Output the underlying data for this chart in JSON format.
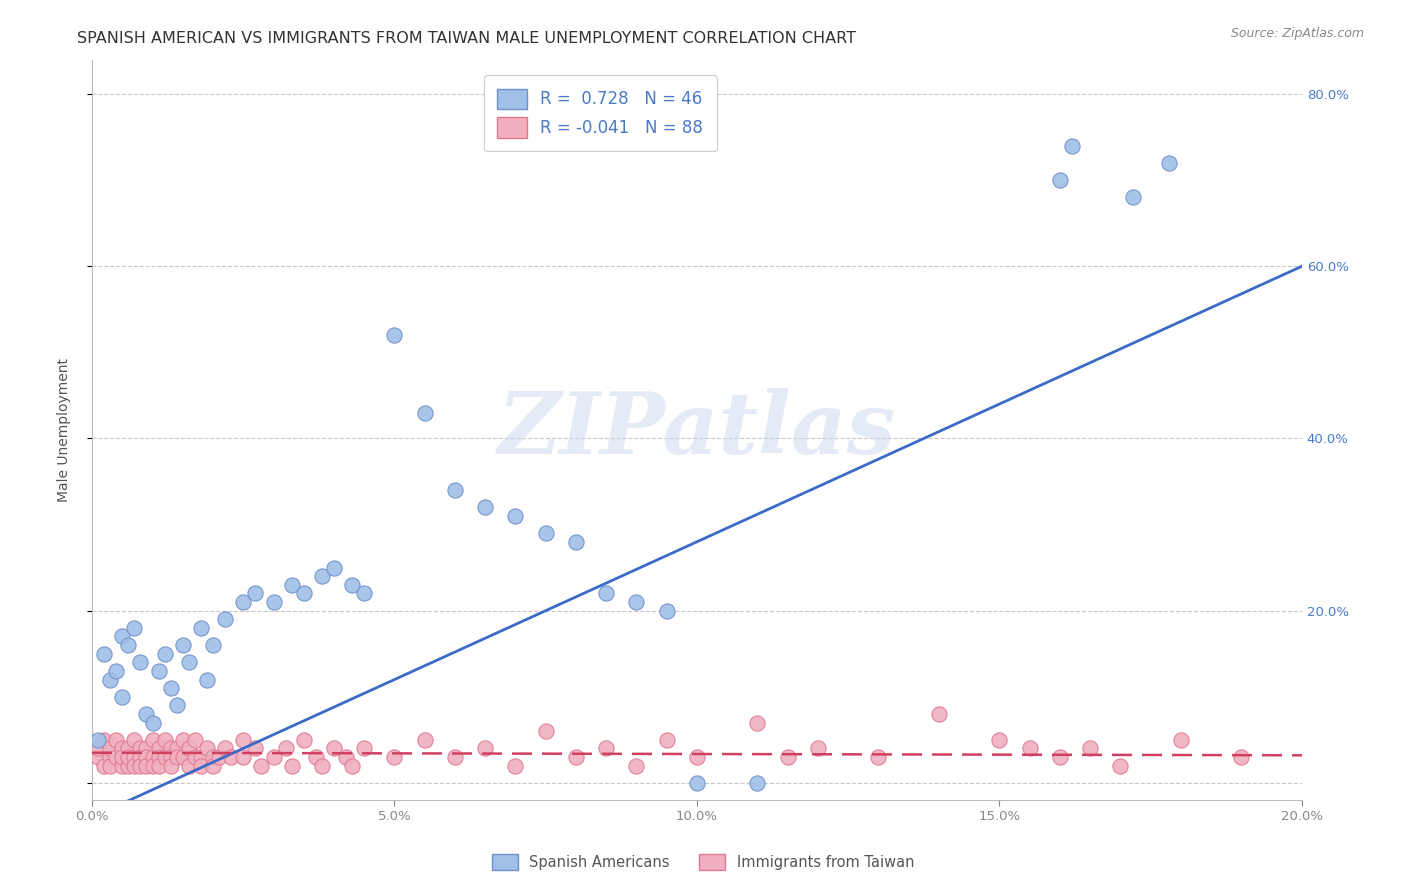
{
  "title": "SPANISH AMERICAN VS IMMIGRANTS FROM TAIWAN MALE UNEMPLOYMENT CORRELATION CHART",
  "source": "Source: ZipAtlas.com",
  "ylabel": "Male Unemployment",
  "xlim": [
    0.0,
    0.2
  ],
  "ylim": [
    -0.02,
    0.84
  ],
  "xticks": [
    0.0,
    0.05,
    0.1,
    0.15,
    0.2
  ],
  "yticks_left": [
    0.0,
    0.2,
    0.4,
    0.6,
    0.8
  ],
  "yticks_right": [
    0.2,
    0.4,
    0.6,
    0.8
  ],
  "blue_scatter_x": [
    0.001,
    0.002,
    0.003,
    0.004,
    0.005,
    0.005,
    0.006,
    0.007,
    0.008,
    0.009,
    0.01,
    0.011,
    0.012,
    0.013,
    0.014,
    0.015,
    0.016,
    0.018,
    0.019,
    0.02,
    0.022,
    0.025,
    0.027,
    0.03,
    0.033,
    0.035,
    0.038,
    0.04,
    0.043,
    0.045,
    0.05,
    0.055,
    0.06,
    0.065,
    0.07,
    0.075,
    0.08,
    0.085,
    0.09,
    0.095,
    0.1,
    0.11,
    0.16,
    0.162,
    0.172,
    0.178
  ],
  "blue_scatter_y": [
    0.05,
    0.15,
    0.12,
    0.13,
    0.1,
    0.17,
    0.16,
    0.18,
    0.14,
    0.08,
    0.07,
    0.13,
    0.15,
    0.11,
    0.09,
    0.16,
    0.14,
    0.18,
    0.12,
    0.16,
    0.19,
    0.21,
    0.22,
    0.21,
    0.23,
    0.22,
    0.24,
    0.25,
    0.23,
    0.22,
    0.52,
    0.43,
    0.34,
    0.32,
    0.31,
    0.29,
    0.28,
    0.22,
    0.21,
    0.2,
    0.0,
    0.0,
    0.7,
    0.74,
    0.68,
    0.72
  ],
  "pink_scatter_x": [
    0.001,
    0.001,
    0.002,
    0.002,
    0.003,
    0.003,
    0.003,
    0.004,
    0.004,
    0.005,
    0.005,
    0.005,
    0.006,
    0.006,
    0.006,
    0.007,
    0.007,
    0.007,
    0.008,
    0.008,
    0.008,
    0.009,
    0.009,
    0.009,
    0.01,
    0.01,
    0.01,
    0.011,
    0.011,
    0.011,
    0.012,
    0.012,
    0.013,
    0.013,
    0.013,
    0.014,
    0.014,
    0.015,
    0.015,
    0.016,
    0.016,
    0.017,
    0.017,
    0.018,
    0.018,
    0.019,
    0.02,
    0.02,
    0.021,
    0.022,
    0.023,
    0.025,
    0.025,
    0.027,
    0.028,
    0.03,
    0.032,
    0.033,
    0.035,
    0.037,
    0.038,
    0.04,
    0.042,
    0.043,
    0.045,
    0.05,
    0.055,
    0.06,
    0.065,
    0.07,
    0.075,
    0.08,
    0.085,
    0.09,
    0.095,
    0.1,
    0.11,
    0.115,
    0.12,
    0.13,
    0.14,
    0.15,
    0.155,
    0.16,
    0.165,
    0.17,
    0.18,
    0.19
  ],
  "pink_scatter_y": [
    0.03,
    0.04,
    0.02,
    0.05,
    0.03,
    0.04,
    0.02,
    0.03,
    0.05,
    0.02,
    0.04,
    0.03,
    0.04,
    0.02,
    0.03,
    0.05,
    0.03,
    0.02,
    0.04,
    0.03,
    0.02,
    0.04,
    0.03,
    0.02,
    0.05,
    0.03,
    0.02,
    0.04,
    0.03,
    0.02,
    0.05,
    0.03,
    0.04,
    0.03,
    0.02,
    0.04,
    0.03,
    0.05,
    0.03,
    0.04,
    0.02,
    0.03,
    0.05,
    0.03,
    0.02,
    0.04,
    0.03,
    0.02,
    0.03,
    0.04,
    0.03,
    0.05,
    0.03,
    0.04,
    0.02,
    0.03,
    0.04,
    0.02,
    0.05,
    0.03,
    0.02,
    0.04,
    0.03,
    0.02,
    0.04,
    0.03,
    0.05,
    0.03,
    0.04,
    0.02,
    0.06,
    0.03,
    0.04,
    0.02,
    0.05,
    0.03,
    0.07,
    0.03,
    0.04,
    0.03,
    0.08,
    0.05,
    0.04,
    0.03,
    0.04,
    0.02,
    0.05,
    0.03
  ],
  "blue_line_x": [
    0.0,
    0.2
  ],
  "blue_line_y": [
    -0.04,
    0.6
  ],
  "pink_line_x": [
    0.0,
    0.2
  ],
  "pink_line_y": [
    0.035,
    0.032
  ],
  "blue_line_color": "#3a6bc8",
  "pink_line_color": "#d04060",
  "blue_dot_color": "#a0c0e8",
  "pink_dot_color": "#f0b0c0",
  "blue_dot_edge": "#7090c8",
  "pink_dot_edge": "#e07890",
  "watermark_text": "ZIPatlas",
  "title_fontsize": 11.5,
  "axis_label_fontsize": 10,
  "tick_fontsize": 9.5,
  "source_fontsize": 9,
  "background_color": "#ffffff",
  "grid_color": "#c8c8c8",
  "right_tick_color": "#4a7ac8",
  "dot_size": 120
}
